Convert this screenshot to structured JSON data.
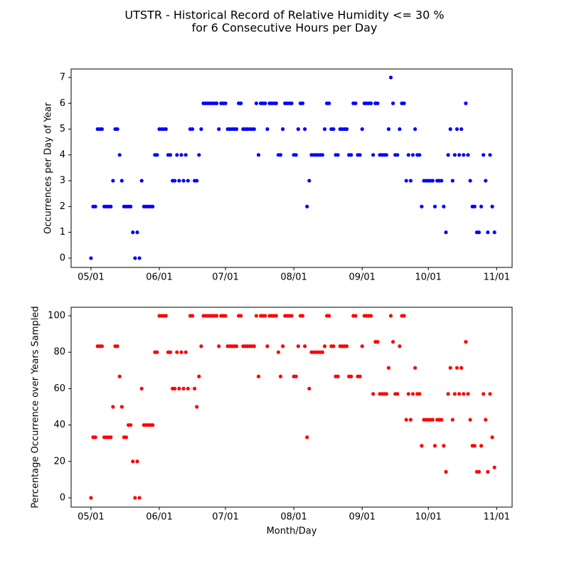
{
  "title": [
    "UTSTR - Historical Record of Relative Humidity <= 30 %",
    "for 6 Consecutive Hours per Day"
  ],
  "chart_data": [
    {
      "type": "scatter",
      "ylabel": "Occurrences per Day of Year",
      "color": "#0000ff",
      "xlim": [
        "04/22",
        "11/08"
      ],
      "xticks": [
        "05/01",
        "06/01",
        "07/01",
        "08/01",
        "09/01",
        "10/01",
        "11/01"
      ],
      "ylim": [
        -0.36,
        7.33
      ],
      "yticks": [
        0,
        1,
        2,
        3,
        4,
        5,
        6,
        7
      ],
      "x": [
        "05/01",
        "05/02",
        "05/03",
        "05/04",
        "05/05",
        "05/06",
        "05/07",
        "05/08",
        "05/09",
        "05/10",
        "05/11",
        "05/12",
        "05/13",
        "05/14",
        "05/15",
        "05/16",
        "05/17",
        "05/18",
        "05/19",
        "05/20",
        "05/21",
        "05/22",
        "05/23",
        "05/24",
        "05/25",
        "05/26",
        "05/27",
        "05/28",
        "05/29",
        "05/30",
        "05/31",
        "06/01",
        "06/02",
        "06/03",
        "06/04",
        "06/05",
        "06/06",
        "06/07",
        "06/08",
        "06/09",
        "06/10",
        "06/11",
        "06/12",
        "06/13",
        "06/14",
        "06/15",
        "06/16",
        "06/17",
        "06/18",
        "06/19",
        "06/20",
        "06/21",
        "06/22",
        "06/23",
        "06/24",
        "06/25",
        "06/26",
        "06/27",
        "06/28",
        "06/29",
        "06/30",
        "07/01",
        "07/02",
        "07/03",
        "07/04",
        "07/05",
        "07/06",
        "07/07",
        "07/08",
        "07/09",
        "07/10",
        "07/11",
        "07/12",
        "07/13",
        "07/14",
        "07/15",
        "07/16",
        "07/17",
        "07/18",
        "07/19",
        "07/20",
        "07/21",
        "07/22",
        "07/23",
        "07/24",
        "07/25",
        "07/26",
        "07/27",
        "07/28",
        "07/29",
        "07/30",
        "07/31",
        "08/01",
        "08/02",
        "08/03",
        "08/04",
        "08/05",
        "08/06",
        "08/07",
        "08/08",
        "08/09",
        "08/10",
        "08/11",
        "08/12",
        "08/13",
        "08/14",
        "08/15",
        "08/16",
        "08/17",
        "08/18",
        "08/19",
        "08/20",
        "08/21",
        "08/22",
        "08/23",
        "08/24",
        "08/25",
        "08/26",
        "08/27",
        "08/28",
        "08/29",
        "08/30",
        "08/31",
        "09/01",
        "09/02",
        "09/03",
        "09/04",
        "09/05",
        "09/06",
        "09/07",
        "09/08",
        "09/09",
        "09/10",
        "09/11",
        "09/12",
        "09/13",
        "09/14",
        "09/15",
        "09/16",
        "09/17",
        "09/18",
        "09/19",
        "09/20",
        "09/21",
        "09/22",
        "09/23",
        "09/24",
        "09/25",
        "09/26",
        "09/27",
        "09/28",
        "09/29",
        "09/30",
        "10/01",
        "10/02",
        "10/03",
        "10/04",
        "10/05",
        "10/06",
        "10/07",
        "10/08",
        "10/09",
        "10/10",
        "10/11",
        "10/12",
        "10/13",
        "10/14",
        "10/15",
        "10/16",
        "10/17",
        "10/18",
        "10/19",
        "10/20",
        "10/21",
        "10/22",
        "10/23",
        "10/24",
        "10/25",
        "10/26",
        "10/27",
        "10/28",
        "10/29",
        "10/30",
        "10/31"
      ],
      "values": [
        0,
        2,
        2,
        5,
        5,
        5,
        2,
        2,
        2,
        2,
        3,
        5,
        5,
        4,
        3,
        2,
        2,
        2,
        2,
        1,
        0,
        1,
        0,
        3,
        2,
        2,
        2,
        2,
        2,
        4,
        4,
        5,
        5,
        5,
        5,
        4,
        4,
        3,
        3,
        4,
        3,
        4,
        3,
        4,
        3,
        5,
        5,
        3,
        3,
        4,
        5,
        6,
        6,
        6,
        6,
        6,
        6,
        6,
        5,
        6,
        6,
        6,
        5,
        5,
        5,
        5,
        5,
        6,
        6,
        5,
        5,
        5,
        5,
        5,
        5,
        6,
        4,
        6,
        6,
        6,
        5,
        6,
        6,
        6,
        6,
        4,
        4,
        5,
        6,
        6,
        6,
        6,
        4,
        4,
        5,
        6,
        6,
        5,
        2,
        3,
        4,
        4,
        4,
        4,
        4,
        4,
        5,
        6,
        6,
        5,
        5,
        4,
        4,
        5,
        5,
        5,
        5,
        4,
        4,
        6,
        6,
        4,
        4,
        5,
        6,
        6,
        6,
        6,
        4,
        6,
        6,
        4,
        4,
        4,
        4,
        5,
        7,
        6,
        4,
        4,
        5,
        6,
        6,
        3,
        4,
        3,
        4,
        5,
        4,
        4,
        2,
        3,
        3,
        3,
        3,
        3,
        2,
        3,
        3,
        3,
        2,
        1,
        4,
        5,
        3,
        4,
        5,
        4,
        5,
        4,
        6,
        4,
        3,
        2,
        2,
        1,
        1,
        2,
        4,
        3,
        1,
        4,
        2,
        1
      ]
    },
    {
      "type": "scatter",
      "ylabel": "Percentage Occurrence over Years Sampled",
      "xlabel": "Month/Day",
      "color": "#ff0000",
      "xlim": [
        "04/22",
        "11/08"
      ],
      "xticks": [
        "05/01",
        "06/01",
        "07/01",
        "08/01",
        "09/01",
        "10/01",
        "11/01"
      ],
      "ylim": [
        -5.1,
        104.7
      ],
      "yticks": [
        0,
        20,
        40,
        60,
        80,
        100
      ],
      "x": [
        "05/01",
        "05/02",
        "05/03",
        "05/04",
        "05/05",
        "05/06",
        "05/07",
        "05/08",
        "05/09",
        "05/10",
        "05/11",
        "05/12",
        "05/13",
        "05/14",
        "05/15",
        "05/16",
        "05/17",
        "05/18",
        "05/19",
        "05/20",
        "05/21",
        "05/22",
        "05/23",
        "05/24",
        "05/25",
        "05/26",
        "05/27",
        "05/28",
        "05/29",
        "05/30",
        "05/31",
        "06/01",
        "06/02",
        "06/03",
        "06/04",
        "06/05",
        "06/06",
        "06/07",
        "06/08",
        "06/09",
        "06/10",
        "06/11",
        "06/12",
        "06/13",
        "06/14",
        "06/15",
        "06/16",
        "06/17",
        "06/18",
        "06/19",
        "06/20",
        "06/21",
        "06/22",
        "06/23",
        "06/24",
        "06/25",
        "06/26",
        "06/27",
        "06/28",
        "06/29",
        "06/30",
        "07/01",
        "07/02",
        "07/03",
        "07/04",
        "07/05",
        "07/06",
        "07/07",
        "07/08",
        "07/09",
        "07/10",
        "07/11",
        "07/12",
        "07/13",
        "07/14",
        "07/15",
        "07/16",
        "07/17",
        "07/18",
        "07/19",
        "07/20",
        "07/21",
        "07/22",
        "07/23",
        "07/24",
        "07/25",
        "07/26",
        "07/27",
        "07/28",
        "07/29",
        "07/30",
        "07/31",
        "08/01",
        "08/02",
        "08/03",
        "08/04",
        "08/05",
        "08/06",
        "08/07",
        "08/08",
        "08/09",
        "08/10",
        "08/11",
        "08/12",
        "08/13",
        "08/14",
        "08/15",
        "08/16",
        "08/17",
        "08/18",
        "08/19",
        "08/20",
        "08/21",
        "08/22",
        "08/23",
        "08/24",
        "08/25",
        "08/26",
        "08/27",
        "08/28",
        "08/29",
        "08/30",
        "08/31",
        "09/01",
        "09/02",
        "09/03",
        "09/04",
        "09/05",
        "09/06",
        "09/07",
        "09/08",
        "09/09",
        "09/10",
        "09/11",
        "09/12",
        "09/13",
        "09/14",
        "09/15",
        "09/16",
        "09/17",
        "09/18",
        "09/19",
        "09/20",
        "09/21",
        "09/22",
        "09/23",
        "09/24",
        "09/25",
        "09/26",
        "09/27",
        "09/28",
        "09/29",
        "09/30",
        "10/01",
        "10/02",
        "10/03",
        "10/04",
        "10/05",
        "10/06",
        "10/07",
        "10/08",
        "10/09",
        "10/10",
        "10/11",
        "10/12",
        "10/13",
        "10/14",
        "10/15",
        "10/16",
        "10/17",
        "10/18",
        "10/19",
        "10/20",
        "10/21",
        "10/22",
        "10/23",
        "10/24",
        "10/25",
        "10/26",
        "10/27",
        "10/28",
        "10/29",
        "10/30",
        "10/31"
      ],
      "values": [
        0,
        33.3,
        33.3,
        83.3,
        83.3,
        83.3,
        33.3,
        33.3,
        33.3,
        33.3,
        50,
        83.3,
        83.3,
        66.7,
        50,
        33.3,
        33.3,
        40,
        40,
        20,
        0,
        20,
        0,
        60,
        40,
        40,
        40,
        40,
        40,
        80,
        80,
        100,
        100,
        100,
        100,
        80,
        80,
        60,
        60,
        80,
        60,
        80,
        60,
        80,
        60,
        100,
        100,
        60,
        50,
        66.7,
        83.3,
        100,
        100,
        100,
        100,
        100,
        100,
        100,
        83.3,
        100,
        100,
        100,
        83.3,
        83.3,
        83.3,
        83.3,
        83.3,
        100,
        100,
        83.3,
        83.3,
        83.3,
        83.3,
        83.3,
        83.3,
        100,
        66.7,
        100,
        100,
        100,
        83.3,
        100,
        100,
        100,
        100,
        80,
        66.7,
        83.3,
        100,
        100,
        100,
        100,
        66.7,
        66.7,
        83.3,
        100,
        100,
        83.3,
        33.3,
        60,
        80,
        80,
        80,
        80,
        80,
        80,
        83.3,
        100,
        100,
        83.3,
        83.3,
        66.7,
        66.7,
        83.3,
        83.3,
        83.3,
        83.3,
        66.7,
        66.7,
        100,
        100,
        66.7,
        66.7,
        83.3,
        100,
        100,
        100,
        100,
        57.1,
        85.7,
        85.7,
        57.1,
        57.1,
        57.1,
        57.1,
        71.4,
        100,
        85.7,
        57.1,
        57.1,
        83.3,
        100,
        100,
        42.9,
        57.1,
        42.9,
        57.1,
        71.4,
        57.1,
        57.1,
        28.6,
        42.9,
        42.9,
        42.9,
        42.9,
        42.9,
        28.6,
        42.9,
        42.9,
        42.9,
        28.6,
        14.3,
        57.1,
        71.4,
        42.9,
        57.1,
        71.4,
        57.1,
        71.4,
        57.1,
        85.7,
        57.1,
        42.9,
        28.6,
        28.6,
        14.3,
        14.3,
        28.6,
        57.1,
        42.9,
        14.3,
        57.1,
        33.3,
        16.7
      ]
    }
  ]
}
